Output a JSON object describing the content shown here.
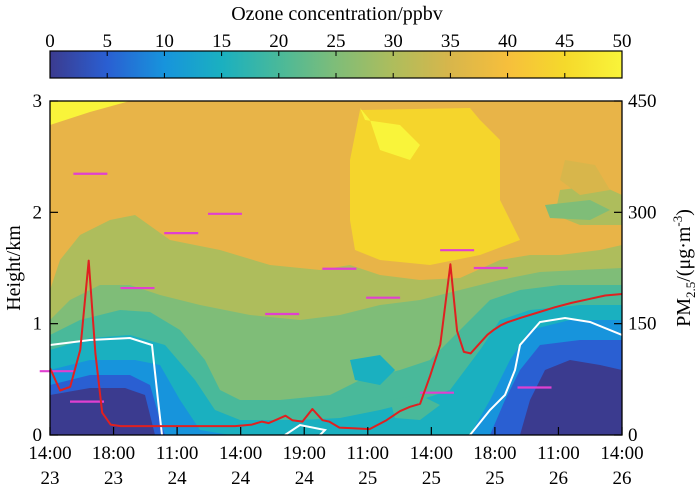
{
  "chart_data": {
    "type": "heatmap",
    "colorbar": {
      "title": "Ozone concentration/ppbv",
      "ticks": [
        "0",
        "5",
        "10",
        "15",
        "20",
        "25",
        "30",
        "35",
        "40",
        "45",
        "50"
      ],
      "range": [
        0,
        50
      ],
      "colors": [
        "#3b3b8f",
        "#2a5fd2",
        "#1794dc",
        "#1ab0c0",
        "#49b99a",
        "#7fbd78",
        "#aebd5c",
        "#d8b64b",
        "#f6bf3c",
        "#f5d92b",
        "#f9f43a"
      ]
    },
    "x_ticks": [
      {
        "time": "14:00",
        "day": "23"
      },
      {
        "time": "18:00",
        "day": "23"
      },
      {
        "time": "11:00",
        "day": "24"
      },
      {
        "time": "14:00",
        "day": "24"
      },
      {
        "time": "19:00",
        "day": "24"
      },
      {
        "time": "11:00",
        "day": "25"
      },
      {
        "time": "14:00",
        "day": "25"
      },
      {
        "time": "18:00",
        "day": "25"
      },
      {
        "time": "11:00",
        "day": "26"
      },
      {
        "time": "14:00",
        "day": "26"
      }
    ],
    "left_axis": {
      "label": "Height/km",
      "ticks": [
        "0",
        "1",
        "2",
        "3"
      ],
      "range": [
        0,
        3
      ]
    },
    "right_axis": {
      "label_main": "PM",
      "label_sub": "2.5",
      "label_rest": "/(μg·m",
      "label_sup": "-3",
      "label_end": ")",
      "ticks": [
        "0",
        "150",
        "300",
        "450"
      ],
      "range": [
        0,
        450
      ]
    },
    "pm25_series": {
      "color": "#e02020",
      "x": [
        0.0,
        0.3,
        0.6,
        0.9,
        1.15,
        1.35,
        1.55,
        1.8,
        2.1,
        2.4,
        2.7,
        3.0,
        3.5,
        4.0,
        4.5,
        5.0,
        5.5,
        6.0,
        6.3,
        6.5,
        6.8,
        7.0,
        7.2,
        7.5,
        7.8,
        8.1,
        8.3,
        8.6,
        9.0,
        9.5,
        10.0,
        10.4,
        10.7,
        11.0,
        11.3,
        11.6,
        11.9,
        12.1,
        12.3,
        12.5,
        12.8,
        13.0,
        13.2,
        13.4,
        13.6,
        14.0,
        14.5,
        15.0,
        15.5,
        16.0,
        16.5,
        17.0
      ],
      "y": [
        90,
        60,
        65,
        115,
        235,
        110,
        30,
        14,
        12,
        12,
        12,
        12,
        12,
        12,
        12,
        12,
        12,
        14,
        18,
        16,
        22,
        26,
        20,
        18,
        35,
        20,
        18,
        10,
        9,
        8,
        20,
        32,
        38,
        42,
        80,
        122,
        230,
        140,
        112,
        110,
        125,
        135,
        142,
        148,
        152,
        158,
        165,
        172,
        178,
        183,
        188,
        190
      ]
    },
    "pm25_hours": [
      {
        "x": 0.2,
        "y": 86
      },
      {
        "x": 1.1,
        "y": 45
      },
      {
        "x": 1.2,
        "y": 352
      },
      {
        "x": 2.6,
        "y": 198
      },
      {
        "x": 3.9,
        "y": 272
      },
      {
        "x": 5.2,
        "y": 298
      },
      {
        "x": 6.9,
        "y": 163
      },
      {
        "x": 8.6,
        "y": 224
      },
      {
        "x": 9.9,
        "y": 185
      },
      {
        "x": 11.5,
        "y": 57
      },
      {
        "x": 12.1,
        "y": 249
      },
      {
        "x": 13.1,
        "y": 225
      },
      {
        "x": 14.4,
        "y": 64
      }
    ]
  }
}
